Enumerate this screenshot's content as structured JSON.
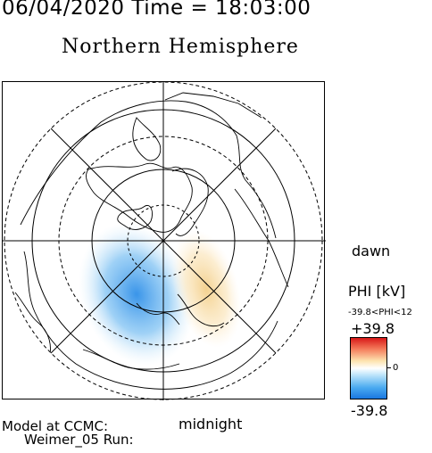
{
  "header": {
    "date_time": "06/04/2020 Time = 18:03:00",
    "hemisphere": "Northern Hemisphere"
  },
  "map": {
    "dawn_label": "dawn",
    "midnight_label": "midnight"
  },
  "model": {
    "line1": "Model at CCMC:",
    "line2": "Weimer_05 Run:"
  },
  "colorbar": {
    "title": "PHI [kV]",
    "range_text": "-39.8<PHI<12",
    "max_label": "+39.8",
    "zero_label": "0",
    "min_label": "-39.8",
    "colors": {
      "positive": "#d81818",
      "neutral": "#ffffff",
      "negative": "#1a78e0"
    }
  }
}
